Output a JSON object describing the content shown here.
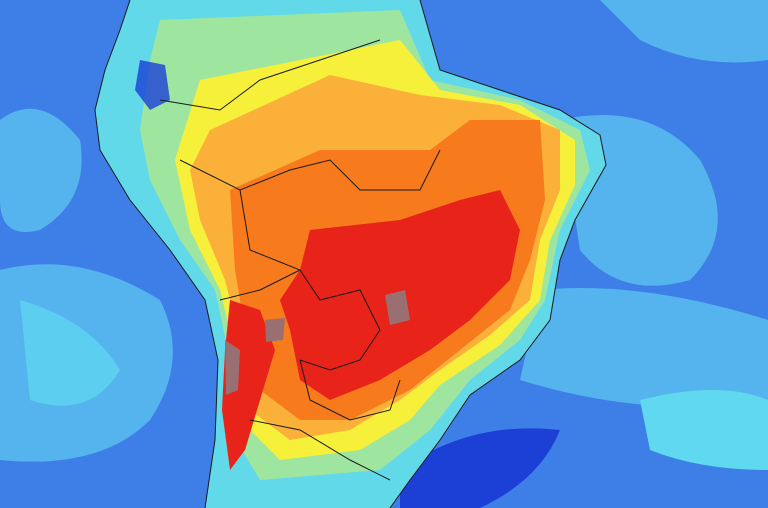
{
  "map": {
    "type": "temperature-anomaly-map",
    "region": "South America",
    "colors": {
      "ocean": "#3d7fe6",
      "ocean_light": "#55b4ee",
      "ocean_cyan": "#5fd8f0",
      "ocean_deep": "#1c3fd6",
      "land_cool": "#62d9e8",
      "land_green": "#9ee6a0",
      "land_yellow": "#f7f03a",
      "land_light_orange": "#fbb03a",
      "land_orange": "#f77a1c",
      "land_red": "#e8231a",
      "land_gray": "#9a6f72",
      "borders": "#1a1a1a"
    }
  }
}
